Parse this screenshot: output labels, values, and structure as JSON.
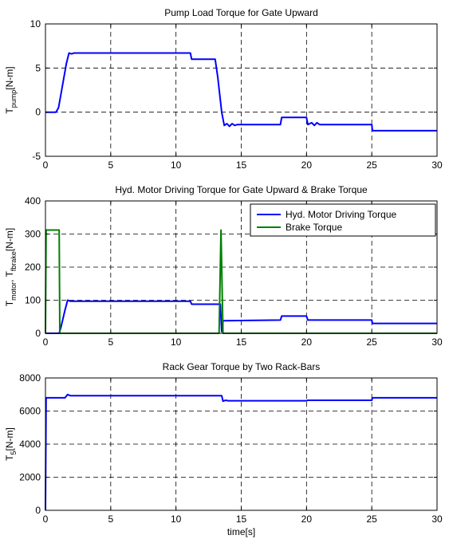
{
  "chart_data": [
    {
      "type": "line",
      "title": "Pump Load Torque for Gate Upward",
      "ylabel": {
        "main": "T",
        "sub": "pump",
        "unit": "[N-m]"
      },
      "xlabel": "",
      "xlim": [
        0,
        30
      ],
      "ylim": [
        -5,
        10
      ],
      "xticks": [
        "0",
        "5",
        "10",
        "15",
        "20",
        "25",
        "30"
      ],
      "yticks": [
        "-5",
        "0",
        "5",
        "10"
      ],
      "grid": true,
      "series": [
        {
          "color": "#0000ff",
          "x": [
            0,
            0.8,
            1.0,
            1.3,
            1.6,
            1.8,
            2.0,
            2.2,
            5,
            10,
            11.1,
            11.2,
            13.0,
            13.2,
            13.5,
            13.7,
            13.9,
            14.1,
            14.3,
            14.5,
            14.7,
            18,
            18.1,
            20,
            20.1,
            20.4,
            20.6,
            20.8,
            21.0,
            25,
            25.05,
            30
          ],
          "y": [
            0,
            0,
            0.5,
            3.0,
            5.5,
            6.7,
            6.6,
            6.7,
            6.7,
            6.7,
            6.7,
            6.0,
            6.0,
            4.0,
            0,
            -1.5,
            -1.3,
            -1.6,
            -1.3,
            -1.5,
            -1.4,
            -1.4,
            -0.6,
            -0.6,
            -1.4,
            -1.2,
            -1.5,
            -1.2,
            -1.4,
            -1.4,
            -2.1,
            -2.1
          ]
        }
      ]
    },
    {
      "type": "line",
      "title": "Hyd. Motor Driving Torque for Gate Upward & Brake Torque",
      "ylabel": {
        "main": "T",
        "sub": "motor",
        "mid": ", T",
        "sub2": "fbrake",
        "unit": "[N-m]"
      },
      "xlabel": "",
      "xlim": [
        0,
        30
      ],
      "ylim": [
        0,
        400
      ],
      "xticks": [
        "0",
        "5",
        "10",
        "15",
        "20",
        "25",
        "30"
      ],
      "yticks": [
        "0",
        "100",
        "200",
        "300",
        "400"
      ],
      "grid": true,
      "legend": {
        "position": "top-right"
      },
      "series": [
        {
          "name": "Hyd. Motor Driving Torque",
          "color": "#0000ff",
          "x": [
            0,
            1.05,
            1.2,
            1.5,
            1.7,
            1.9,
            5,
            10,
            11.1,
            11.2,
            13.4,
            13.5,
            13.55,
            13.6,
            18,
            18.1,
            20,
            20.1,
            25,
            25.05,
            30
          ],
          "y": [
            0,
            0,
            20,
            70,
            100,
            97,
            97,
            97,
            97,
            88,
            88,
            5,
            5,
            38,
            40,
            52,
            52,
            40,
            40,
            30,
            30
          ]
        },
        {
          "name": "Brake Torque",
          "color": "#008000",
          "x": [
            0,
            0.05,
            1.05,
            1.1,
            13.3,
            13.45,
            13.6,
            30
          ],
          "y": [
            0,
            312,
            312,
            0,
            0,
            312,
            0,
            0
          ]
        }
      ]
    },
    {
      "type": "line",
      "title": "Rack Gear Torque by Two Rack-Bars",
      "ylabel": {
        "main": "T",
        "sub": "5",
        "unit": "[N-m]"
      },
      "xlabel": "time[s]",
      "xlim": [
        0,
        30
      ],
      "ylim": [
        0,
        8000
      ],
      "xticks": [
        "0",
        "5",
        "10",
        "15",
        "20",
        "25",
        "30"
      ],
      "yticks": [
        "0",
        "2000",
        "4000",
        "6000",
        "8000"
      ],
      "grid": true,
      "series": [
        {
          "color": "#0000ff",
          "x": [
            0,
            0.05,
            1.5,
            1.7,
            1.9,
            13.5,
            13.6,
            13.8,
            14,
            20,
            20.1,
            25,
            25.05,
            30
          ],
          "y": [
            0,
            6800,
            6800,
            7000,
            6930,
            6930,
            6600,
            6650,
            6620,
            6620,
            6650,
            6650,
            6800,
            6800
          ]
        }
      ]
    }
  ]
}
